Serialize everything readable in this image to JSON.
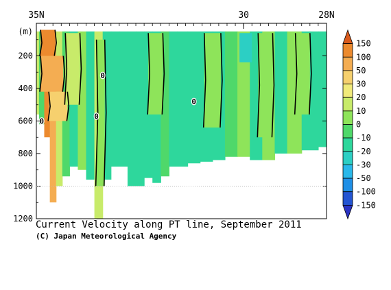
{
  "chart_data": {
    "type": "heatmap",
    "title": "Current Velocity along PT line, September 2011",
    "credit": "(C) Japan Meteorological Agency",
    "xlabel": "",
    "ylabel": "(m)",
    "x_tick_labels": [
      "35N",
      "30",
      "28N"
    ],
    "x_ticks": [
      35,
      30,
      28
    ],
    "xlim": [
      35,
      28
    ],
    "y_tick_labels": [
      "200",
      "400",
      "600",
      "800",
      "1000",
      "1200"
    ],
    "y_ticks": [
      200,
      400,
      600,
      800,
      1000,
      1200
    ],
    "ylim": [
      0,
      1200
    ],
    "contour_zero_label": "0",
    "colorbar": {
      "levels": [
        "150",
        "100",
        "50",
        "30",
        "20",
        "10",
        "0",
        "-10",
        "-20",
        "-30",
        "-50",
        "-100",
        "-150"
      ],
      "colors": [
        "#d95a1c",
        "#ec8a2e",
        "#f4ad52",
        "#f6d06e",
        "#f1ea7a",
        "#c8eb6a",
        "#8ee45a",
        "#4fd86a",
        "#2ed79c",
        "#2ccfc4",
        "#29b8ea",
        "#1f8fe6",
        "#2455d2",
        "#2b34c4"
      ]
    },
    "columns": [
      {
        "lat": 35.0,
        "bottom": 560,
        "value": 10
      },
      {
        "lat": 34.87,
        "bottom": 620,
        "value": -10
      },
      {
        "lat": 34.75,
        "bottom": 700,
        "value": 100
      },
      {
        "lat": 34.6,
        "bottom": 1100,
        "value": 50
      },
      {
        "lat": 34.45,
        "bottom": 1000,
        "value": 15
      },
      {
        "lat": 34.3,
        "bottom": 940,
        "value": -5
      },
      {
        "lat": 34.1,
        "bottom": 880,
        "value": -15
      },
      {
        "lat": 33.9,
        "bottom": 900,
        "value": 5
      },
      {
        "lat": 33.7,
        "bottom": 960,
        "value": -15
      },
      {
        "lat": 33.5,
        "bottom": 1200,
        "value": 15
      },
      {
        "lat": 33.3,
        "bottom": 960,
        "value": -15
      },
      {
        "lat": 33.1,
        "bottom": 880,
        "value": -15
      },
      {
        "lat": 32.9,
        "bottom": 880,
        "value": -15
      },
      {
        "lat": 32.7,
        "bottom": 1000,
        "value": -15
      },
      {
        "lat": 32.5,
        "bottom": 1000,
        "value": -15
      },
      {
        "lat": 32.3,
        "bottom": 950,
        "value": -15
      },
      {
        "lat": 32.1,
        "bottom": 980,
        "value": -15
      },
      {
        "lat": 31.9,
        "bottom": 940,
        "value": -5
      },
      {
        "lat": 31.7,
        "bottom": 880,
        "value": -15
      },
      {
        "lat": 31.5,
        "bottom": 880,
        "value": -15
      },
      {
        "lat": 31.2,
        "bottom": 860,
        "value": -15
      },
      {
        "lat": 30.9,
        "bottom": 850,
        "value": -15
      },
      {
        "lat": 30.6,
        "bottom": 840,
        "value": -15
      },
      {
        "lat": 30.3,
        "bottom": 820,
        "value": -10
      },
      {
        "lat": 30.0,
        "bottom": 820,
        "value": 5
      },
      {
        "lat": 29.7,
        "bottom": 840,
        "value": -15
      },
      {
        "lat": 29.4,
        "bottom": 840,
        "value": 5
      },
      {
        "lat": 29.1,
        "bottom": 800,
        "value": -15
      },
      {
        "lat": 28.8,
        "bottom": 800,
        "value": 5
      },
      {
        "lat": 28.4,
        "bottom": 780,
        "value": -15
      },
      {
        "lat": 28.0,
        "bottom": 760,
        "value": -15
      }
    ],
    "bands": [
      {
        "lat_from": 34.9,
        "lat_to": 34.55,
        "depth_from": 40,
        "depth_to": 200,
        "value": 140
      },
      {
        "lat_from": 34.9,
        "lat_to": 34.35,
        "depth_from": 200,
        "depth_to": 420,
        "value": 80
      },
      {
        "lat_from": 34.7,
        "lat_to": 34.25,
        "depth_from": 420,
        "depth_to": 600,
        "value": 40
      },
      {
        "lat_from": 34.3,
        "lat_to": 33.95,
        "depth_from": 60,
        "depth_to": 500,
        "value": 15
      },
      {
        "lat_from": 33.55,
        "lat_to": 33.35,
        "depth_from": 100,
        "depth_to": 1000,
        "value": 5
      },
      {
        "lat_from": 32.3,
        "lat_to": 31.95,
        "depth_from": 60,
        "depth_to": 560,
        "value": 5
      },
      {
        "lat_from": 30.95,
        "lat_to": 30.55,
        "depth_from": 60,
        "depth_to": 640,
        "value": 5
      },
      {
        "lat_from": 29.65,
        "lat_to": 29.3,
        "depth_from": 60,
        "depth_to": 700,
        "value": 5
      },
      {
        "lat_from": 28.75,
        "lat_to": 28.4,
        "depth_from": 60,
        "depth_to": 560,
        "value": 5
      },
      {
        "lat_from": 30.1,
        "lat_to": 29.8,
        "depth_from": 60,
        "depth_to": 240,
        "value": -25
      }
    ],
    "zero_contour_labels": [
      {
        "lat": 34.87,
        "depth": 600
      },
      {
        "lat": 33.55,
        "depth": 570
      },
      {
        "lat": 33.4,
        "depth": 320
      },
      {
        "lat": 31.2,
        "depth": 480
      }
    ]
  }
}
